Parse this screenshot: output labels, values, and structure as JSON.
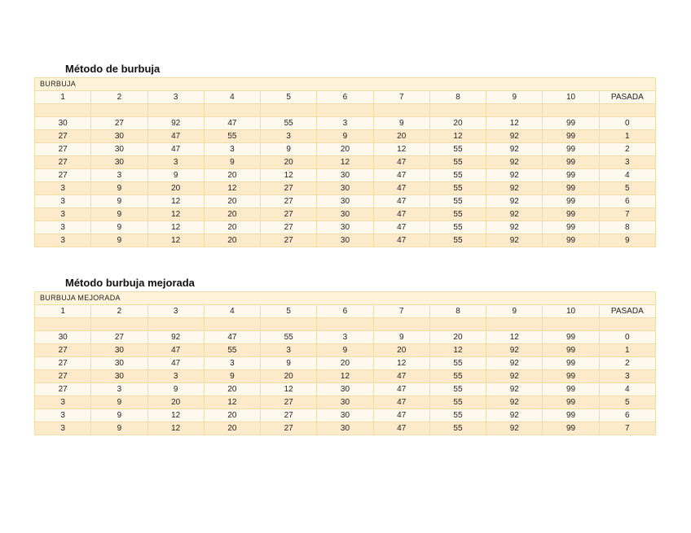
{
  "page": {
    "background": "#ffffff"
  },
  "colors": {
    "band_light": "#fef9ee",
    "band_dark": "#fceaca",
    "header_bg": "#fdf3d8",
    "border": "#f1dca7",
    "title_text": "#111111",
    "cell_text": "#1f1f1f"
  },
  "tables": [
    {
      "title": "Método de burbuja",
      "header": "BURBUJA",
      "columns": [
        "1",
        "2",
        "3",
        "4",
        "5",
        "6",
        "7",
        "8",
        "9",
        "10",
        "PASADA"
      ],
      "rows": [
        [
          "30",
          "27",
          "92",
          "47",
          "55",
          "3",
          "9",
          "20",
          "12",
          "99",
          "0"
        ],
        [
          "27",
          "30",
          "47",
          "55",
          "3",
          "9",
          "20",
          "12",
          "92",
          "99",
          "1"
        ],
        [
          "27",
          "30",
          "47",
          "3",
          "9",
          "20",
          "12",
          "55",
          "92",
          "99",
          "2"
        ],
        [
          "27",
          "30",
          "3",
          "9",
          "20",
          "12",
          "47",
          "55",
          "92",
          "99",
          "3"
        ],
        [
          "27",
          "3",
          "9",
          "20",
          "12",
          "30",
          "47",
          "55",
          "92",
          "99",
          "4"
        ],
        [
          "3",
          "9",
          "20",
          "12",
          "27",
          "30",
          "47",
          "55",
          "92",
          "99",
          "5"
        ],
        [
          "3",
          "9",
          "12",
          "20",
          "27",
          "30",
          "47",
          "55",
          "92",
          "99",
          "6"
        ],
        [
          "3",
          "9",
          "12",
          "20",
          "27",
          "30",
          "47",
          "55",
          "92",
          "99",
          "7"
        ],
        [
          "3",
          "9",
          "12",
          "20",
          "27",
          "30",
          "47",
          "55",
          "92",
          "99",
          "8"
        ],
        [
          "3",
          "9",
          "12",
          "20",
          "27",
          "30",
          "47",
          "55",
          "92",
          "99",
          "9"
        ]
      ]
    },
    {
      "title": "Método burbuja mejorada",
      "header": "BURBUJA MEJORADA",
      "columns": [
        "1",
        "2",
        "3",
        "4",
        "5",
        "6",
        "7",
        "8",
        "9",
        "10",
        "PASADA"
      ],
      "rows": [
        [
          "30",
          "27",
          "92",
          "47",
          "55",
          "3",
          "9",
          "20",
          "12",
          "99",
          "0"
        ],
        [
          "27",
          "30",
          "47",
          "55",
          "3",
          "9",
          "20",
          "12",
          "92",
          "99",
          "1"
        ],
        [
          "27",
          "30",
          "47",
          "3",
          "9",
          "20",
          "12",
          "55",
          "92",
          "99",
          "2"
        ],
        [
          "27",
          "30",
          "3",
          "9",
          "20",
          "12",
          "47",
          "55",
          "92",
          "99",
          "3"
        ],
        [
          "27",
          "3",
          "9",
          "20",
          "12",
          "30",
          "47",
          "55",
          "92",
          "99",
          "4"
        ],
        [
          "3",
          "9",
          "20",
          "12",
          "27",
          "30",
          "47",
          "55",
          "92",
          "99",
          "5"
        ],
        [
          "3",
          "9",
          "12",
          "20",
          "27",
          "30",
          "47",
          "55",
          "92",
          "99",
          "6"
        ],
        [
          "3",
          "9",
          "12",
          "20",
          "27",
          "30",
          "47",
          "55",
          "92",
          "99",
          "7"
        ]
      ]
    }
  ]
}
